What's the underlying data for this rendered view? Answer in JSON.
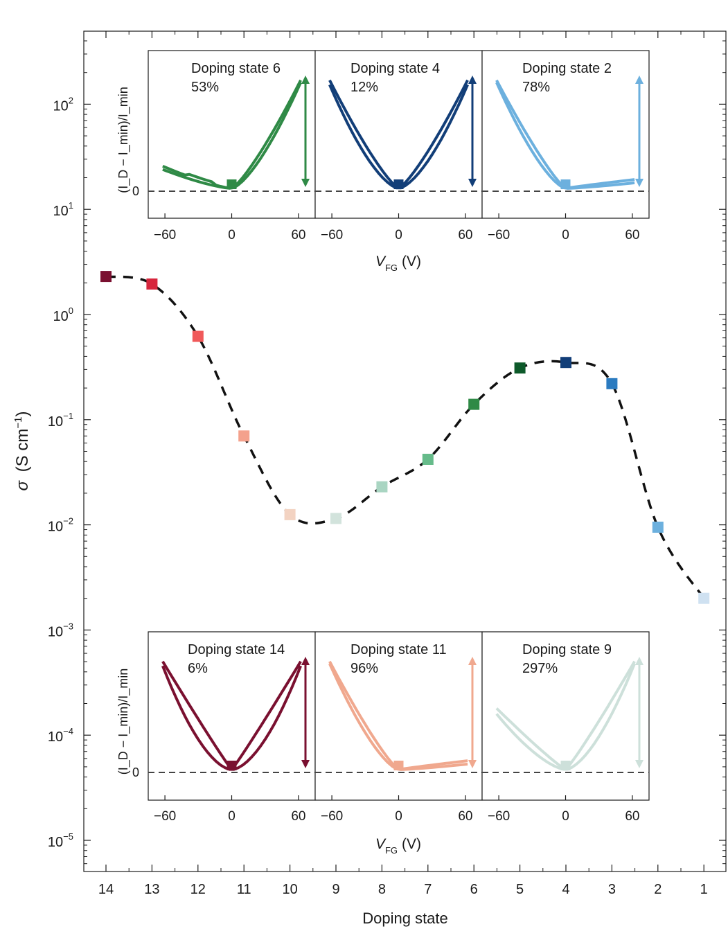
{
  "chart_data": {
    "type": "scatter",
    "main": {
      "xlabel": "Doping state",
      "ylabel_symbol": "σ",
      "ylabel_unit": "(S cm",
      "ylabel_exp": "−1",
      "ylabel_close": ")",
      "x_ticks": [
        14,
        13,
        12,
        11,
        10,
        9,
        8,
        7,
        6,
        5,
        4,
        3,
        2,
        1
      ],
      "x_tick_labels": [
        "14",
        "13",
        "12",
        "11",
        "10",
        "9",
        "8",
        "7",
        "6",
        "5",
        "4",
        "3",
        "2",
        "1"
      ],
      "x_range": [
        14.5,
        0.5
      ],
      "y_scale": "log",
      "y_range_exp": [
        -5.25,
        2.7
      ],
      "y_ticks": [
        {
          "base": "10",
          "exp": "2",
          "value_exp": 2
        },
        {
          "base": "10",
          "exp": "1",
          "value_exp": 1
        },
        {
          "base": "10",
          "exp": "0",
          "value_exp": 0
        },
        {
          "base": "10",
          "exp": "−1",
          "value_exp": -1
        },
        {
          "base": "10",
          "exp": "−2",
          "value_exp": -2
        },
        {
          "base": "10",
          "exp": "−3",
          "value_exp": -3
        },
        {
          "base": "10",
          "exp": "−4",
          "value_exp": -4
        },
        {
          "base": "10",
          "exp": "−5",
          "value_exp": -5
        }
      ],
      "points": [
        {
          "state": 14,
          "sigma": 2.3,
          "color": "#7a1030"
        },
        {
          "state": 13,
          "sigma": 1.95,
          "color": "#d7263d"
        },
        {
          "state": 12,
          "sigma": 0.62,
          "color": "#f0595a"
        },
        {
          "state": 11,
          "sigma": 0.07,
          "color": "#f4a18c"
        },
        {
          "state": 10,
          "sigma": 0.0125,
          "color": "#f3d3c2"
        },
        {
          "state": 9,
          "sigma": 0.0115,
          "color": "#d2e3dc"
        },
        {
          "state": 8,
          "sigma": 0.023,
          "color": "#a9d5c2"
        },
        {
          "state": 7,
          "sigma": 0.042,
          "color": "#66bb8a"
        },
        {
          "state": 6,
          "sigma": 0.14,
          "color": "#2f8a46"
        },
        {
          "state": 5,
          "sigma": 0.31,
          "color": "#0d5a2a"
        },
        {
          "state": 4,
          "sigma": 0.35,
          "color": "#123e78"
        },
        {
          "state": 3,
          "sigma": 0.22,
          "color": "#2b7bc0"
        },
        {
          "state": 2,
          "sigma": 0.0095,
          "color": "#6cb0de"
        },
        {
          "state": 1,
          "sigma": 0.002,
          "color": "#cfe1f1"
        }
      ],
      "line_style": "dashed",
      "line_color": "#111111"
    },
    "insets": {
      "x_ticks": [
        -60,
        0,
        60
      ],
      "x_tick_labels": [
        "−60",
        "0",
        "60"
      ],
      "x_range": [
        -75,
        75
      ],
      "xlabel_symbol": "V",
      "xlabel_sub": "FG",
      "xlabel_unit": "(V)",
      "ylabel": "(I_D − I_min)/I_min",
      "y_zero_label": "0",
      "top_row": [
        {
          "title": "Doping state 6",
          "pct": "53%",
          "color": "#2f8a46",
          "shape": "right"
        },
        {
          "title": "Doping state 4",
          "pct": "12%",
          "color": "#123e78",
          "shape": "v"
        },
        {
          "title": "Doping state 2",
          "pct": "78%",
          "color": "#6cb0de",
          "shape": "left"
        }
      ],
      "bottom_row": [
        {
          "title": "Doping state 14",
          "pct": "6%",
          "color": "#7a1030",
          "shape": "v-wide"
        },
        {
          "title": "Doping state 11",
          "pct": "96%",
          "color": "#f0a88e",
          "shape": "left"
        },
        {
          "title": "Doping state 9",
          "pct": "297%",
          "color": "#cde0da",
          "shape": "right-wide"
        }
      ]
    }
  }
}
